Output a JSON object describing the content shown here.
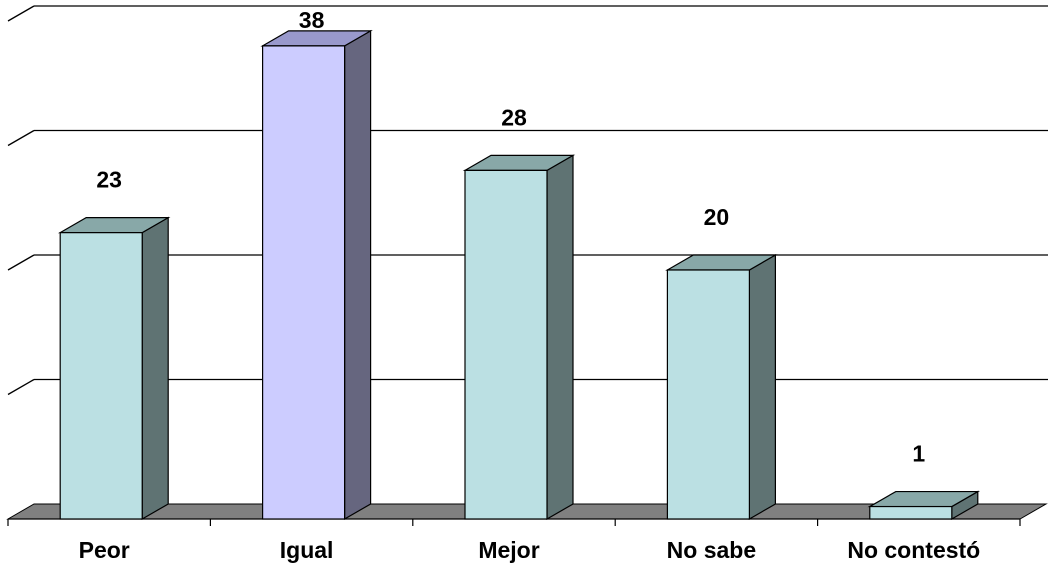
{
  "chart_data": {
    "type": "bar",
    "style": "3d-column",
    "categories": [
      "Peor",
      "Igual",
      "Mejor",
      "No sabe",
      "No contestó"
    ],
    "values": [
      23,
      38,
      28,
      20,
      1
    ],
    "data_labels": [
      "23",
      "38",
      "28",
      "20",
      "1"
    ],
    "ylim": [
      0,
      40
    ],
    "y_gridlines": [
      10,
      20,
      30,
      40
    ],
    "grid": true,
    "legend": "none",
    "colors": {
      "bar_face": "#BBE0E3",
      "bar_side": "#5F7373",
      "bar_top": "#88A8A8",
      "highlight_face": "#CCCCFF",
      "highlight_side": "#66667F",
      "highlight_top": "#9999CC",
      "floor": "#808080",
      "background": "#FFFFFF"
    },
    "highlight_index": 1
  }
}
